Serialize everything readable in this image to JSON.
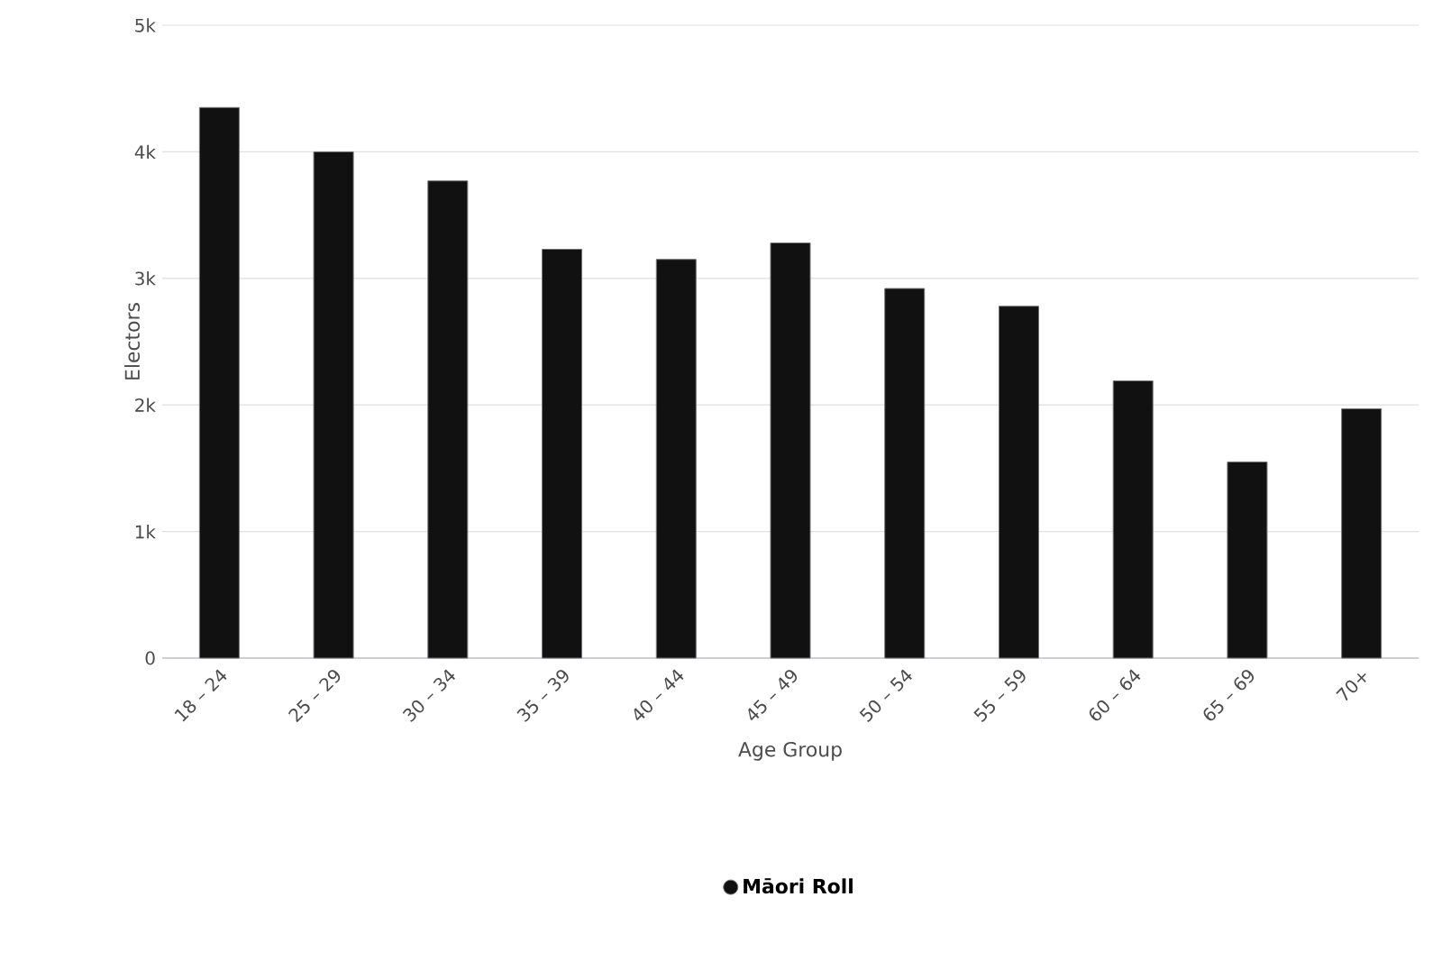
{
  "chart_data": {
    "type": "bar",
    "xlabel": "Age Group",
    "ylabel": "Electors",
    "categories": [
      "18 – 24",
      "25 – 29",
      "30 – 34",
      "35 – 39",
      "40 – 44",
      "45 – 49",
      "50 – 54",
      "55 – 59",
      "60 – 64",
      "65 – 69",
      "70+"
    ],
    "series": [
      {
        "name": "Māori Roll",
        "color": "#111111",
        "values": [
          4350,
          4000,
          3770,
          3230,
          3150,
          3280,
          2920,
          2780,
          2190,
          1550,
          1970
        ]
      }
    ],
    "ylim": [
      0,
      5000
    ],
    "yticks": [
      {
        "value": 0,
        "label": "0"
      },
      {
        "value": 1000,
        "label": "1k"
      },
      {
        "value": 2000,
        "label": "2k"
      },
      {
        "value": 3000,
        "label": "3k"
      },
      {
        "value": 4000,
        "label": "4k"
      },
      {
        "value": 5000,
        "label": "5k"
      }
    ],
    "grid": "y",
    "legend": "bottom",
    "marker": "circle"
  }
}
